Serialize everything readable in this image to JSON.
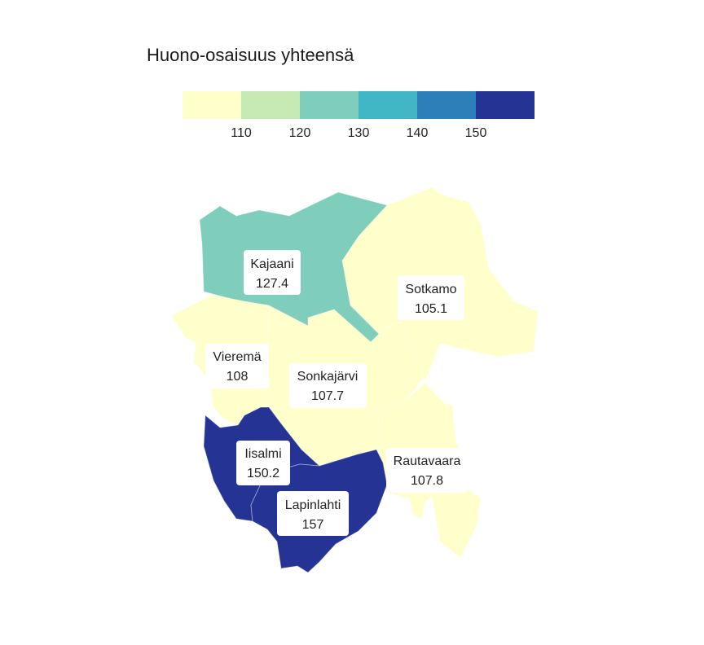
{
  "legend": {
    "title": "Huono-osaisuus yhteensä",
    "colors": [
      "#ffffcc",
      "#c7e9b4",
      "#7fcdbb",
      "#41b6c4",
      "#2c7fb8",
      "#253494"
    ],
    "ticks": [
      "110",
      "120",
      "130",
      "140",
      "150"
    ]
  },
  "regions": [
    {
      "id": "kajaani",
      "name": "Kajaani",
      "value": "127.4",
      "color": "#7fcdbb"
    },
    {
      "id": "sotkamo",
      "name": "Sotkamo",
      "value": "105.1",
      "color": "#ffffcc"
    },
    {
      "id": "vierema",
      "name": "Vieremä",
      "value": "108",
      "color": "#ffffcc"
    },
    {
      "id": "sonkajarvi",
      "name": "Sonkajärvi",
      "value": "107.7",
      "color": "#ffffcc"
    },
    {
      "id": "iisalmi",
      "name": "Iisalmi",
      "value": "150.2",
      "color": "#253494"
    },
    {
      "id": "rautavaara",
      "name": "Rautavaara",
      "value": "107.8",
      "color": "#ffffcc"
    },
    {
      "id": "lapinlahti",
      "name": "Lapinlahti",
      "value": "157",
      "color": "#253494"
    }
  ]
}
